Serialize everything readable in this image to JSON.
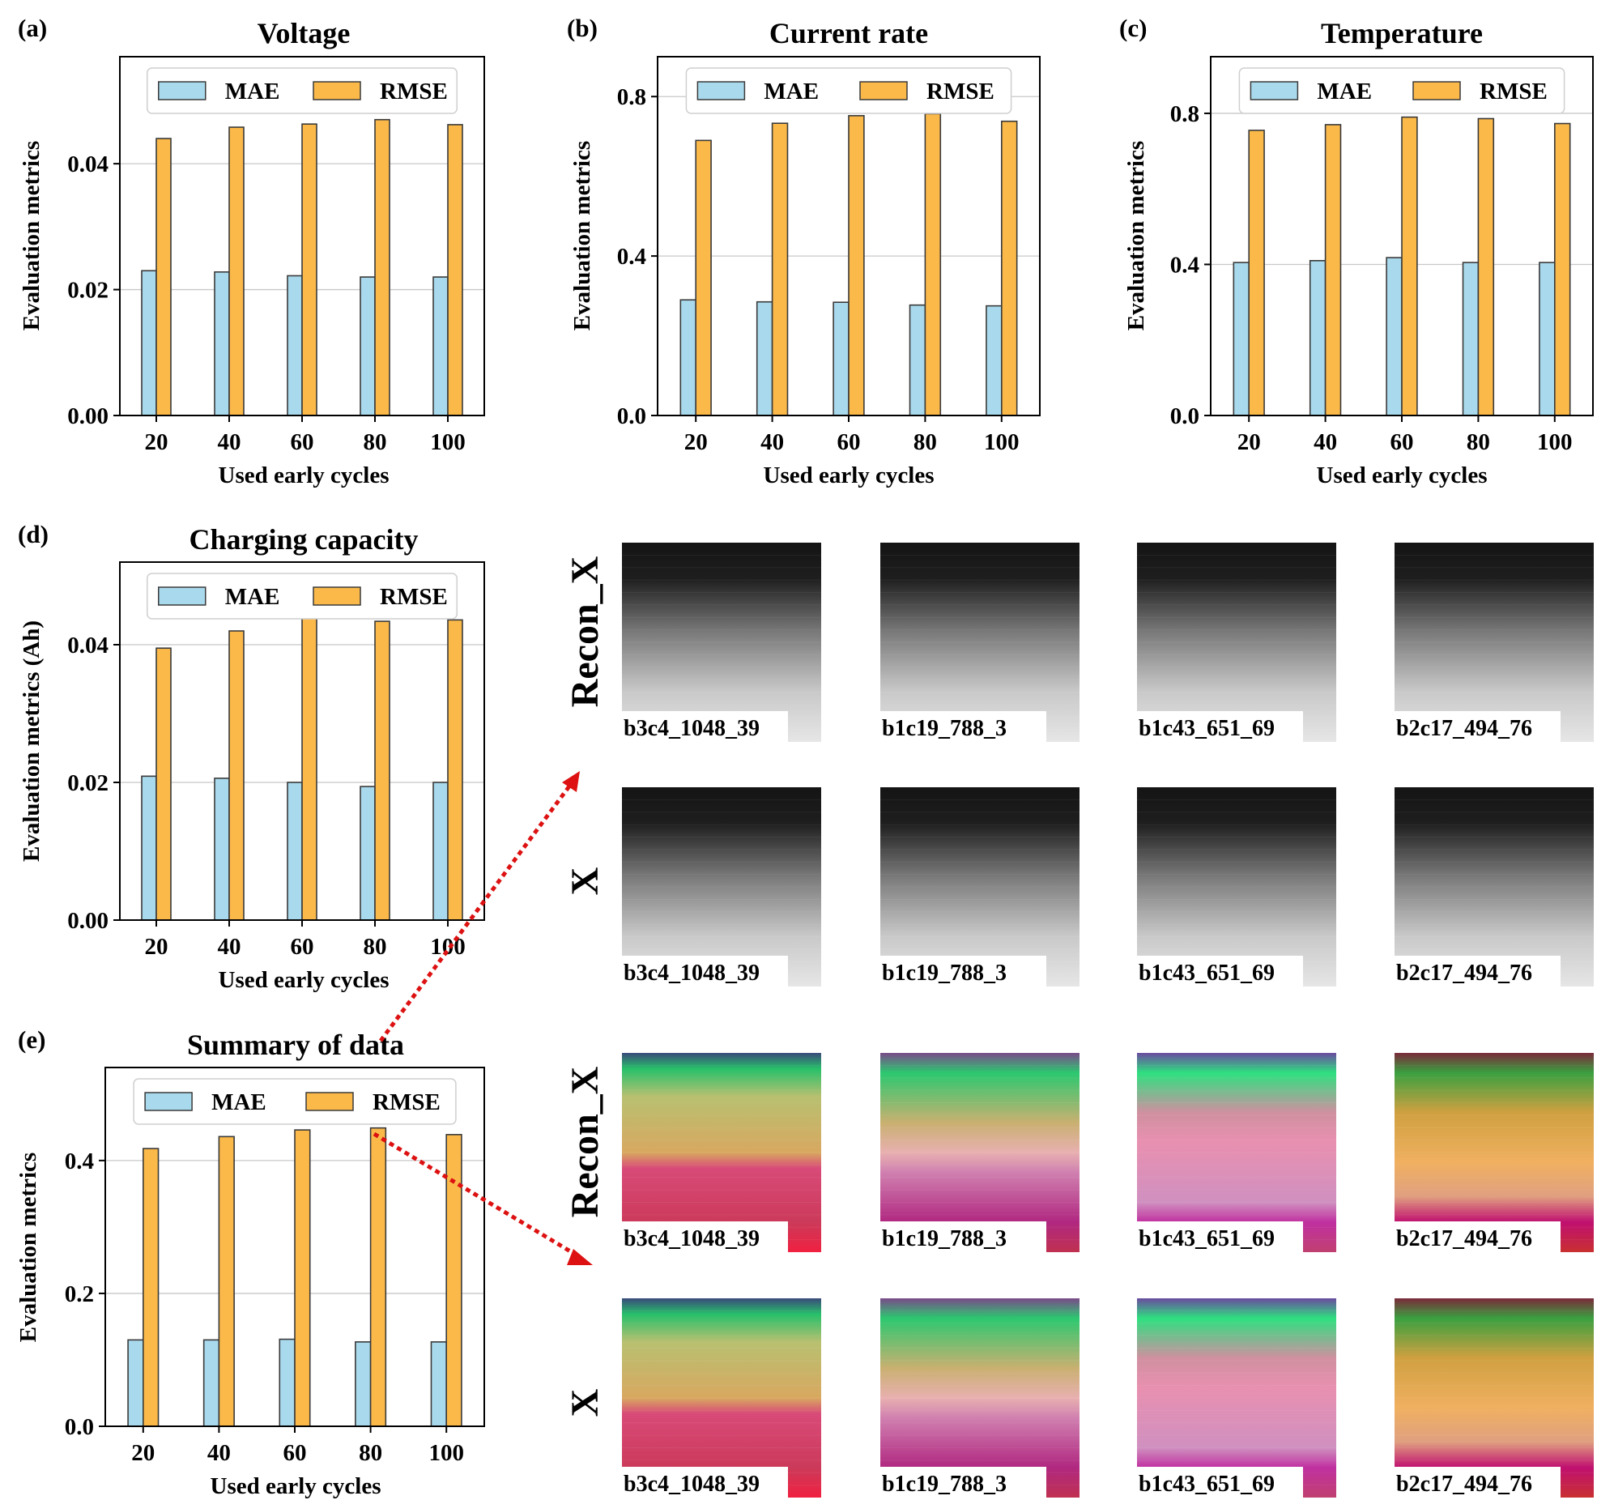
{
  "colors": {
    "mae": "#a9d9ec",
    "rmse": "#fbb94a",
    "edge": "#3a3a3a",
    "grid": "#c8c8c8",
    "arrow": "#dd1111"
  },
  "legend": {
    "mae": "MAE",
    "rmse": "RMSE"
  },
  "chart_data": [
    {
      "panel": "(a)",
      "type": "bar",
      "title": "Voltage",
      "xlabel": "Used early cycles",
      "ylabel": "Evaluation metrics",
      "categories": [
        "20",
        "40",
        "60",
        "80",
        "100"
      ],
      "ylim": [
        0,
        0.057
      ],
      "yticks": [
        "0.00",
        "0.02",
        "0.04"
      ],
      "ytick_values": [
        0,
        0.02,
        0.04
      ],
      "series": [
        {
          "name": "MAE",
          "values": [
            0.023,
            0.0228,
            0.0222,
            0.022,
            0.022
          ]
        },
        {
          "name": "RMSE",
          "values": [
            0.044,
            0.0458,
            0.0463,
            0.047,
            0.0462
          ]
        }
      ],
      "legend": "top"
    },
    {
      "panel": "(b)",
      "type": "bar",
      "title": "Current rate",
      "xlabel": "Used early cycles",
      "ylabel": "Evaluation metrics",
      "categories": [
        "20",
        "40",
        "60",
        "80",
        "100"
      ],
      "ylim": [
        0,
        0.9
      ],
      "yticks": [
        "0.0",
        "0.4",
        "0.8"
      ],
      "ytick_values": [
        0,
        0.4,
        0.8
      ],
      "series": [
        {
          "name": "MAE",
          "values": [
            0.29,
            0.285,
            0.284,
            0.277,
            0.275
          ]
        },
        {
          "name": "RMSE",
          "values": [
            0.69,
            0.733,
            0.752,
            0.757,
            0.738
          ]
        }
      ],
      "legend": "top"
    },
    {
      "panel": "(c)",
      "type": "bar",
      "title": "Temperature",
      "xlabel": "Used early cycles",
      "ylabel": "Evaluation metrics",
      "categories": [
        "20",
        "40",
        "60",
        "80",
        "100"
      ],
      "ylim": [
        0,
        0.95
      ],
      "yticks": [
        "0.0",
        "0.4",
        "0.8"
      ],
      "ytick_values": [
        0,
        0.4,
        0.8
      ],
      "series": [
        {
          "name": "MAE",
          "values": [
            0.405,
            0.41,
            0.418,
            0.405,
            0.405
          ]
        },
        {
          "name": "RMSE",
          "values": [
            0.755,
            0.77,
            0.79,
            0.786,
            0.773
          ]
        }
      ],
      "legend": "top"
    },
    {
      "panel": "(d)",
      "type": "bar",
      "title": "Charging capacity",
      "xlabel": "Used early cycles",
      "ylabel": "Evaluation metrics (Ah)",
      "categories": [
        "20",
        "40",
        "60",
        "80",
        "100"
      ],
      "ylim": [
        0,
        0.052
      ],
      "yticks": [
        "0.00",
        "0.02",
        "0.04"
      ],
      "ytick_values": [
        0,
        0.02,
        0.04
      ],
      "series": [
        {
          "name": "MAE",
          "values": [
            0.0209,
            0.0206,
            0.02,
            0.0194,
            0.02
          ]
        },
        {
          "name": "RMSE",
          "values": [
            0.0395,
            0.042,
            0.0438,
            0.0434,
            0.0436
          ]
        }
      ],
      "legend": "top"
    },
    {
      "panel": "(e)",
      "type": "bar",
      "title": "Summary of data",
      "xlabel": "Used early cycles",
      "ylabel": "Evaluation metrics",
      "categories": [
        "20",
        "40",
        "60",
        "80",
        "100"
      ],
      "ylim": [
        0,
        0.54
      ],
      "yticks": [
        "0.0",
        "0.2",
        "0.4"
      ],
      "ytick_values": [
        0,
        0.2,
        0.4
      ],
      "series": [
        {
          "name": "MAE",
          "values": [
            0.13,
            0.13,
            0.131,
            0.127,
            0.127
          ]
        },
        {
          "name": "RMSE",
          "values": [
            0.418,
            0.436,
            0.446,
            0.449,
            0.439
          ]
        }
      ],
      "legend": "top"
    }
  ],
  "image_grid": {
    "sample_labels": [
      "b3c4_1048_39",
      "b1c19_788_3",
      "b1c43_651_69",
      "b2c17_494_76"
    ],
    "rows": [
      {
        "row_label": "Recon_X",
        "kind": "gray"
      },
      {
        "row_label": "X",
        "kind": "gray"
      },
      {
        "row_label": "Recon_X",
        "kind": "color"
      },
      {
        "row_label": "X",
        "kind": "color"
      }
    ]
  }
}
